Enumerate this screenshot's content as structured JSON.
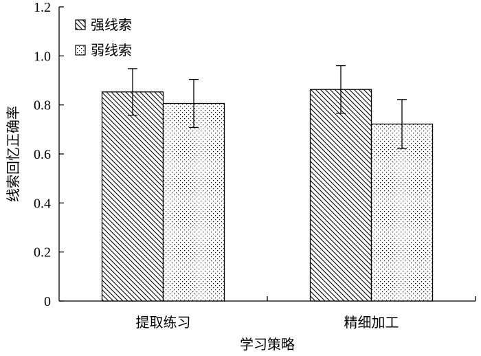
{
  "chart_data": {
    "type": "bar",
    "xlabel": "学习策略",
    "ylabel": "线索回忆正确率",
    "ylim": [
      0,
      1.2
    ],
    "yticks": [
      "0",
      "0.2",
      "0.4",
      "0.6",
      "0.8",
      "1.0",
      "1.2"
    ],
    "categories": [
      "提取练习",
      "精细加工"
    ],
    "legend_position": "top-left",
    "grid": false,
    "series": [
      {
        "name": "强线索",
        "pattern": "diagonal-hatch",
        "values": [
          0.853,
          0.863
        ],
        "errors": [
          0.095,
          0.097
        ]
      },
      {
        "name": "弱线索",
        "pattern": "dots",
        "values": [
          0.806,
          0.722
        ],
        "errors": [
          0.098,
          0.1
        ]
      }
    ]
  }
}
